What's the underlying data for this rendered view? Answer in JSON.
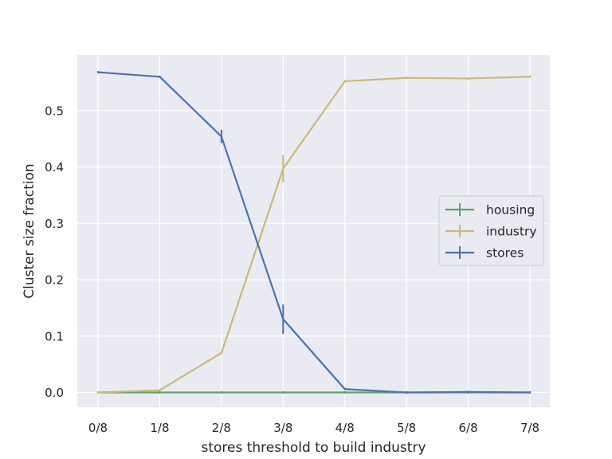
{
  "chart_data": {
    "type": "line",
    "title": "",
    "xlabel": "stores threshold to build industry",
    "ylabel": "Cluster size fraction",
    "categories": [
      "0/8",
      "1/8",
      "2/8",
      "3/8",
      "4/8",
      "5/8",
      "6/8",
      "7/8"
    ],
    "yticks": [
      "0.0",
      "0.1",
      "0.2",
      "0.3",
      "0.4",
      "0.5"
    ],
    "ylim": [
      -0.028,
      0.595
    ],
    "grid": true,
    "legend_position": "center-right",
    "series": [
      {
        "name": "housing",
        "color": "#55a868",
        "values": [
          0.0,
          0.0,
          0.0,
          0.0,
          0.0,
          0.0,
          0.0,
          0.0
        ],
        "errors": [
          0,
          0,
          0,
          0,
          0,
          0,
          0,
          0
        ]
      },
      {
        "name": "industry",
        "color": "#ccb974",
        "values": [
          0.0,
          0.004,
          0.07,
          0.397,
          0.552,
          0.558,
          0.557,
          0.56
        ],
        "errors": [
          0,
          0,
          0.002,
          0.024,
          0.001,
          0.002,
          0.002,
          0.002
        ]
      },
      {
        "name": "stores",
        "color": "#4c72b0",
        "values": [
          0.568,
          0.56,
          0.454,
          0.13,
          0.006,
          0.0,
          0.001,
          0.0
        ],
        "errors": [
          0,
          0.001,
          0.012,
          0.026,
          0.001,
          0,
          0,
          0
        ]
      }
    ]
  }
}
